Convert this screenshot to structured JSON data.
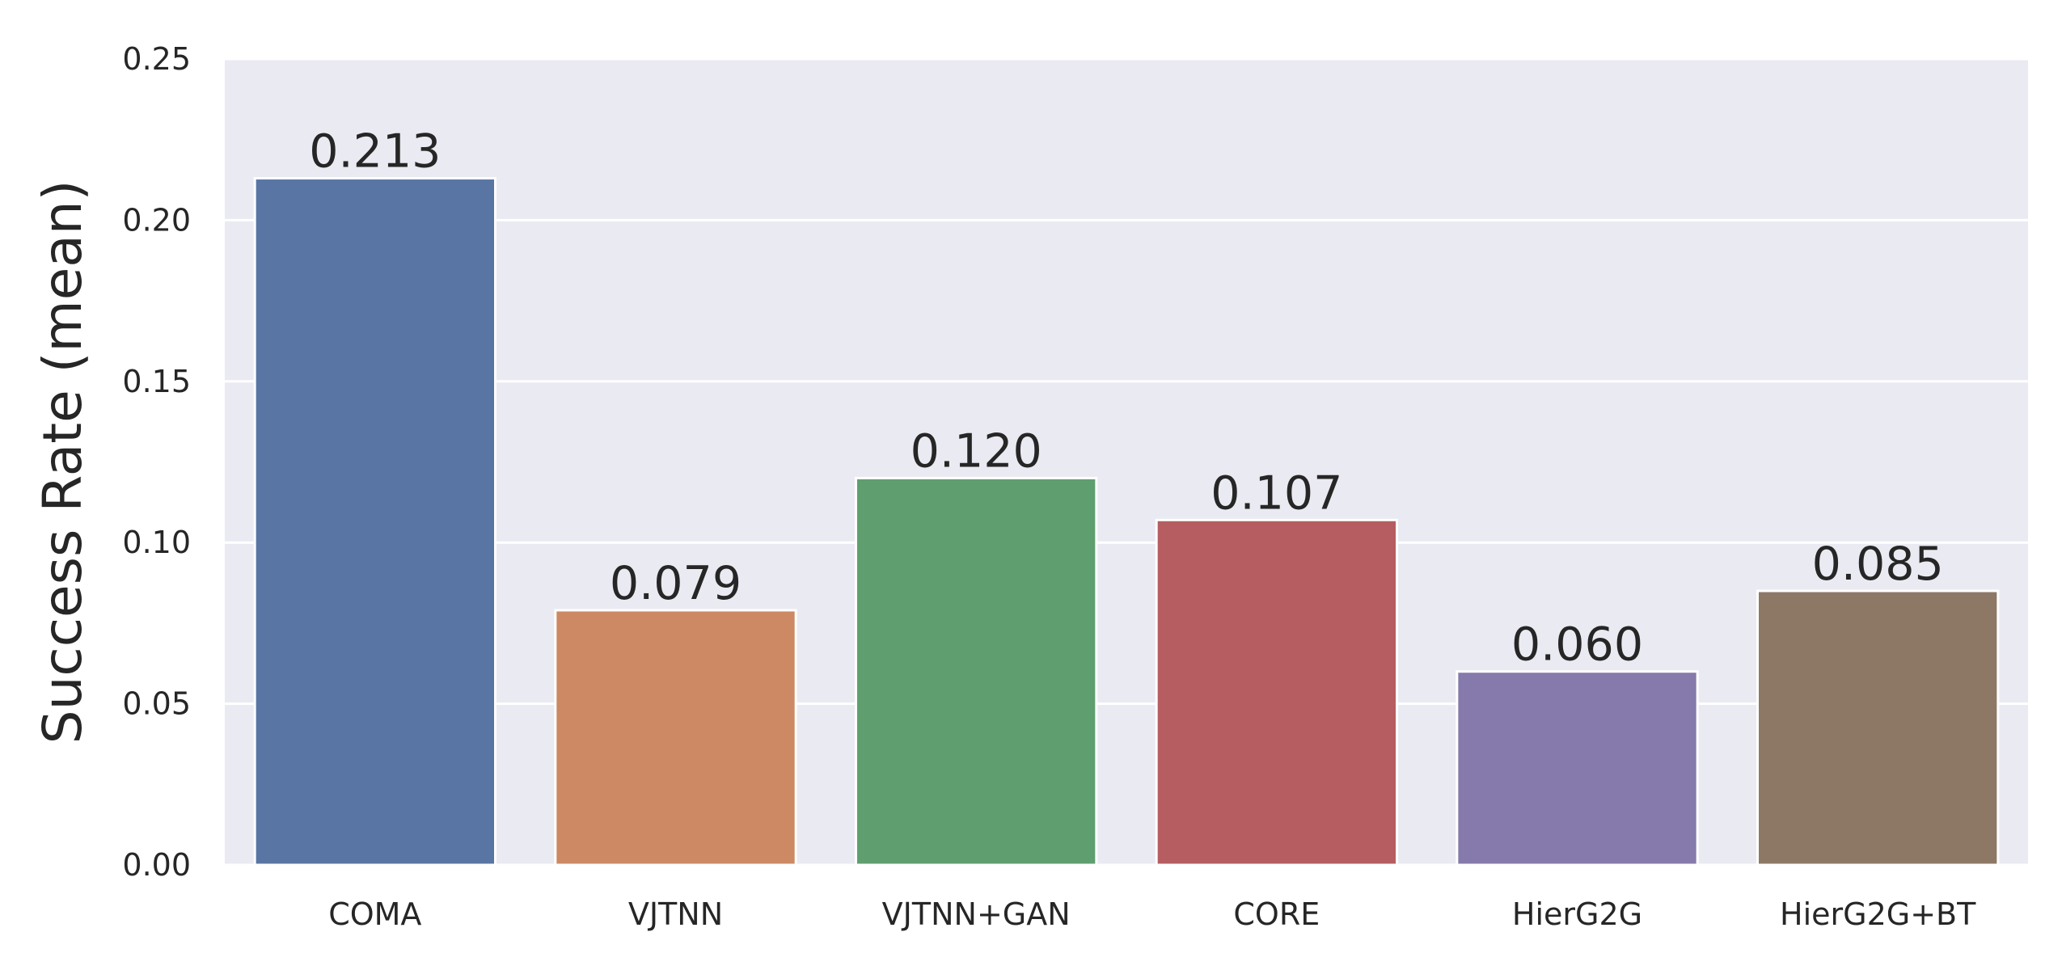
{
  "chart_data": {
    "type": "bar",
    "title": "",
    "xlabel": "",
    "ylabel": "Success Rate (mean)",
    "categories": [
      "COMA",
      "VJTNN",
      "VJTNN+GAN",
      "CORE",
      "HierG2G",
      "HierG2G+BT"
    ],
    "values": [
      0.213,
      0.079,
      0.12,
      0.107,
      0.06,
      0.085
    ],
    "value_labels": [
      "0.213",
      "0.079",
      "0.120",
      "0.107",
      "0.060",
      "0.085"
    ],
    "colors": [
      "#5875a4",
      "#cc8963",
      "#5f9e6e",
      "#b55d60",
      "#857aab",
      "#8d7866"
    ],
    "ylim": [
      0,
      0.25
    ],
    "yticks": [
      0,
      0.05,
      0.1,
      0.15,
      0.2,
      0.25
    ],
    "ytick_labels": [
      "0.00",
      "0.05",
      "0.10",
      "0.15",
      "0.20",
      "0.25"
    ],
    "grid": true,
    "background": "#eaeaf2",
    "grid_color": "#ffffff"
  }
}
